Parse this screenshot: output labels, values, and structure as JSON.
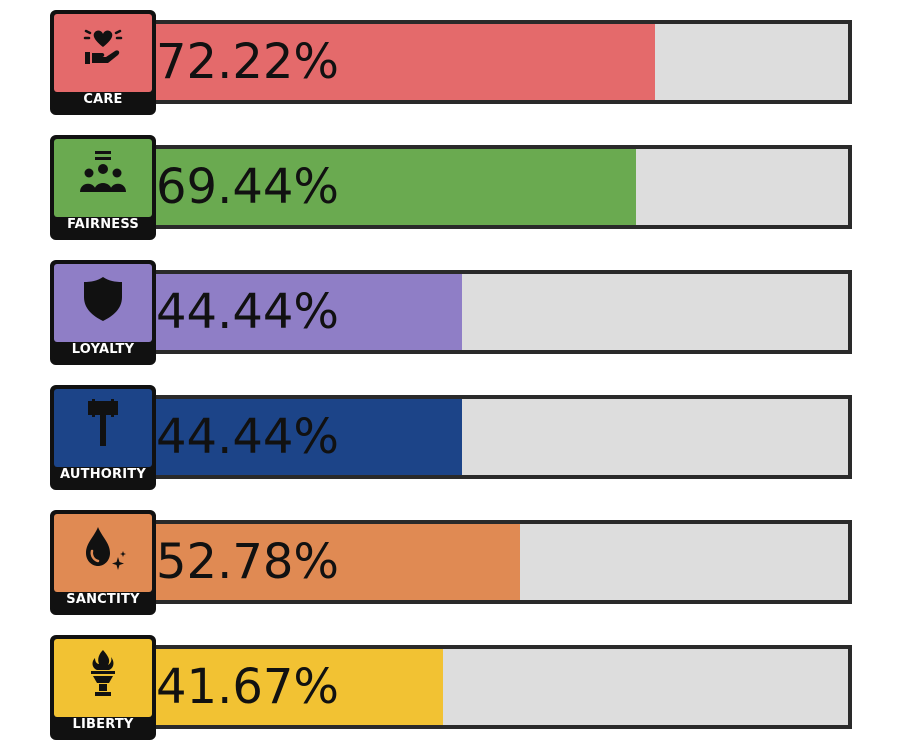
{
  "foundations": [
    {
      "label": "CARE",
      "value_text": "72.22%",
      "value": 72.22,
      "color": "#e46a6b",
      "icon": "heart-hand-icon"
    },
    {
      "label": "FAIRNESS",
      "value_text": "69.44%",
      "value": 69.44,
      "color": "#6aaa50",
      "icon": "people-group-icon"
    },
    {
      "label": "LOYALTY",
      "value_text": "44.44%",
      "value": 44.44,
      "color": "#8f7ec6",
      "icon": "shield-icon"
    },
    {
      "label": "AUTHORITY",
      "value_text": "44.44%",
      "value": 44.44,
      "color": "#1c4488",
      "icon": "gavel-icon"
    },
    {
      "label": "SANCTITY",
      "value_text": "52.78%",
      "value": 52.78,
      "color": "#e08a53",
      "icon": "drop-sparkle-icon"
    },
    {
      "label": "LIBERTY",
      "value_text": "41.67%",
      "value": 41.67,
      "color": "#f2c233",
      "icon": "torch-icon"
    }
  ]
}
